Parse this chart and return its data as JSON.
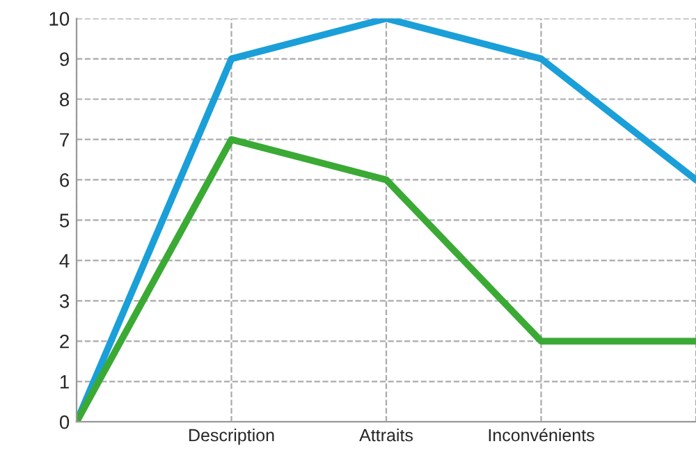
{
  "chart_data": {
    "type": "line",
    "categories": [
      null,
      "Description",
      "Attraits",
      "Inconvénients",
      null
    ],
    "series": [
      {
        "color": "#1a9fd9",
        "values": [
          0,
          9,
          10,
          9,
          6
        ]
      },
      {
        "color": "#3aaa35",
        "values": [
          0,
          7,
          6,
          2,
          2
        ]
      }
    ],
    "ylim": [
      0,
      10
    ],
    "yticks": [
      0,
      1,
      2,
      3,
      4,
      5,
      6,
      7,
      8,
      9,
      10
    ],
    "grid": true,
    "marker": "none",
    "line_style": "solid",
    "legend": false
  }
}
